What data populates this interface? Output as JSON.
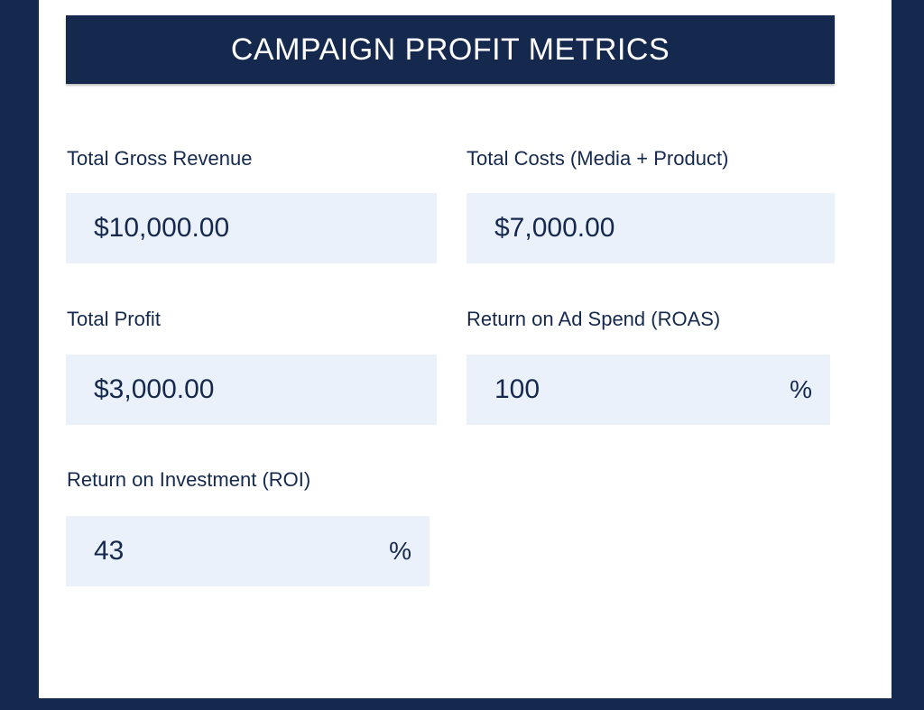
{
  "title": "CAMPAIGN PROFIT METRICS",
  "fields": [
    {
      "label": "Total Gross Revenue",
      "value": "$10,000.00",
      "unit": ""
    },
    {
      "label": "Total Costs (Media + Product)",
      "value": "$7,000.00",
      "unit": ""
    },
    {
      "label": "Total Profit",
      "value": "$3,000.00",
      "unit": ""
    },
    {
      "label": "Return on Ad Spend (ROAS)",
      "value": "100",
      "unit": "%"
    },
    {
      "label": "Return on Investment (ROI)",
      "value": "43",
      "unit": "%"
    }
  ],
  "colors": {
    "navy": "#15294f",
    "field_bg": "#ebf1fa"
  }
}
